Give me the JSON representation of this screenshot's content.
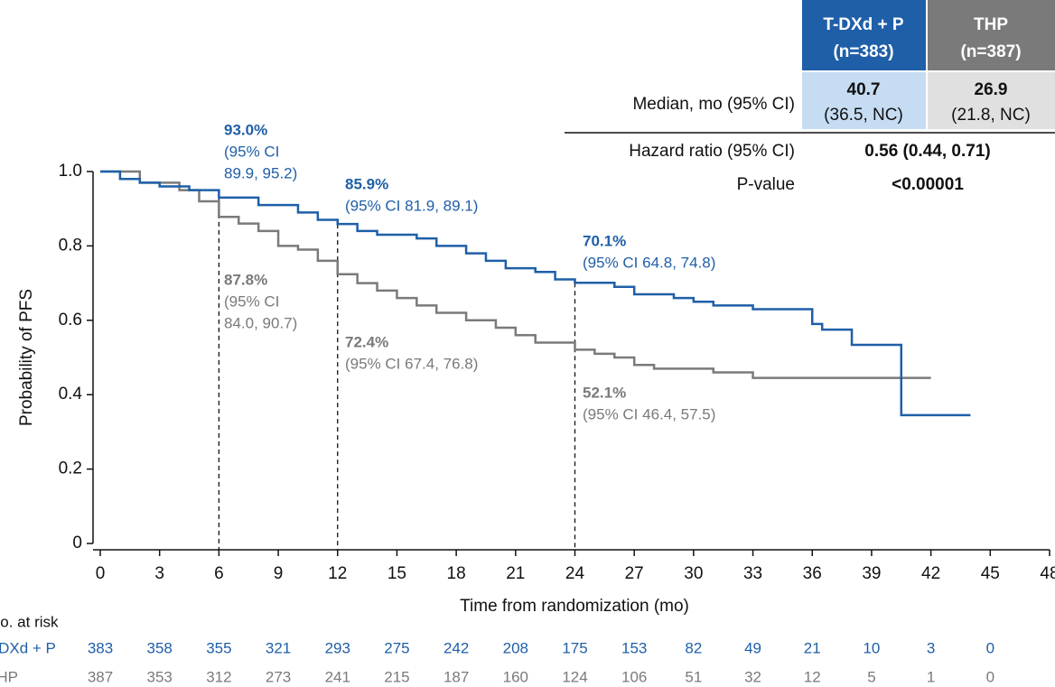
{
  "chart_data": {
    "type": "km",
    "xlabel": "Time from randomization (mo)",
    "ylabel": "Probability of PFS",
    "xlim": [
      0,
      48
    ],
    "xticks": [
      0,
      3,
      6,
      9,
      12,
      15,
      18,
      21,
      24,
      27,
      30,
      33,
      36,
      39,
      42,
      45,
      48
    ],
    "ylim": [
      0,
      1
    ],
    "yticks": [
      0,
      0.2,
      0.4,
      0.6,
      0.8,
      {
        "value": 1,
        "label": "1.0"
      }
    ],
    "series": [
      {
        "name": "T-DXd + P",
        "color": "#1f5fa8",
        "x": [
          0,
          1,
          2,
          3,
          4.5,
          6,
          8,
          10,
          11,
          12,
          13,
          14,
          16,
          17,
          18.5,
          19.5,
          20.5,
          22,
          23,
          24,
          26,
          27,
          29,
          30,
          31,
          33,
          36,
          36.5,
          38,
          40.5,
          44
        ],
        "values": [
          1,
          0.98,
          0.97,
          0.96,
          0.95,
          0.93,
          0.91,
          0.89,
          0.87,
          0.859,
          0.84,
          0.83,
          0.82,
          0.8,
          0.78,
          0.76,
          0.74,
          0.73,
          0.71,
          0.701,
          0.69,
          0.67,
          0.66,
          0.65,
          0.64,
          0.63,
          0.59,
          0.575,
          0.534,
          0.345,
          0.345
        ]
      },
      {
        "name": "THP",
        "color": "#7a7a7a",
        "x": [
          0,
          2,
          4,
          5,
          6,
          7,
          8,
          9,
          10,
          11,
          12,
          13,
          14,
          15,
          16,
          17,
          18.5,
          20,
          21,
          22,
          24,
          25,
          26,
          27,
          28,
          31,
          33,
          42
        ],
        "values": [
          1,
          0.97,
          0.95,
          0.92,
          0.878,
          0.86,
          0.84,
          0.8,
          0.79,
          0.76,
          0.724,
          0.7,
          0.68,
          0.66,
          0.64,
          0.62,
          0.6,
          0.58,
          0.56,
          0.54,
          0.521,
          0.51,
          0.5,
          0.48,
          0.47,
          0.46,
          0.445,
          0.445
        ]
      }
    ],
    "landmarks": [
      6,
      12,
      24
    ],
    "annotations": [
      {
        "series": 0,
        "lines": [
          "93.0%",
          "(95% CI",
          "89.9, 95.2)"
        ]
      },
      {
        "series": 0,
        "lines": [
          "85.9%",
          "(95% CI 81.9, 89.1)"
        ]
      },
      {
        "series": 0,
        "lines": [
          "70.1%",
          "(95% CI 64.8, 74.8)"
        ]
      },
      {
        "series": 1,
        "lines": [
          "87.8%",
          "(95% CI",
          "84.0, 90.7)"
        ]
      },
      {
        "series": 1,
        "lines": [
          "72.4%",
          "(95% CI 67.4, 76.8)"
        ]
      },
      {
        "series": 1,
        "lines": [
          "52.1%",
          "(95% CI 46.4, 57.5)"
        ]
      }
    ],
    "risk_table": {
      "title": "No. at risk",
      "rows": [
        {
          "label": "T-DXd + P",
          "values": [
            383,
            358,
            355,
            321,
            293,
            275,
            242,
            208,
            175,
            153,
            82,
            49,
            21,
            10,
            3,
            0
          ]
        },
        {
          "label": "THP",
          "values": [
            387,
            353,
            312,
            273,
            241,
            215,
            187,
            160,
            124,
            106,
            51,
            32,
            12,
            5,
            1,
            0
          ]
        }
      ]
    }
  },
  "table": {
    "headers": [
      [
        "T-DXd + P",
        "(n=383)"
      ],
      [
        "THP",
        "(n=387)"
      ]
    ],
    "median": {
      "label": "Median, mo (95% CI)",
      "cells": [
        [
          "40.7",
          "(36.5, NC)"
        ],
        [
          "26.9",
          "(21.8, NC)"
        ]
      ]
    },
    "hr": {
      "label": "Hazard ratio (95% CI)",
      "value": "0.56 (0.44, 0.71)"
    },
    "p": {
      "label": "P-value",
      "value": "<0.00001"
    }
  }
}
